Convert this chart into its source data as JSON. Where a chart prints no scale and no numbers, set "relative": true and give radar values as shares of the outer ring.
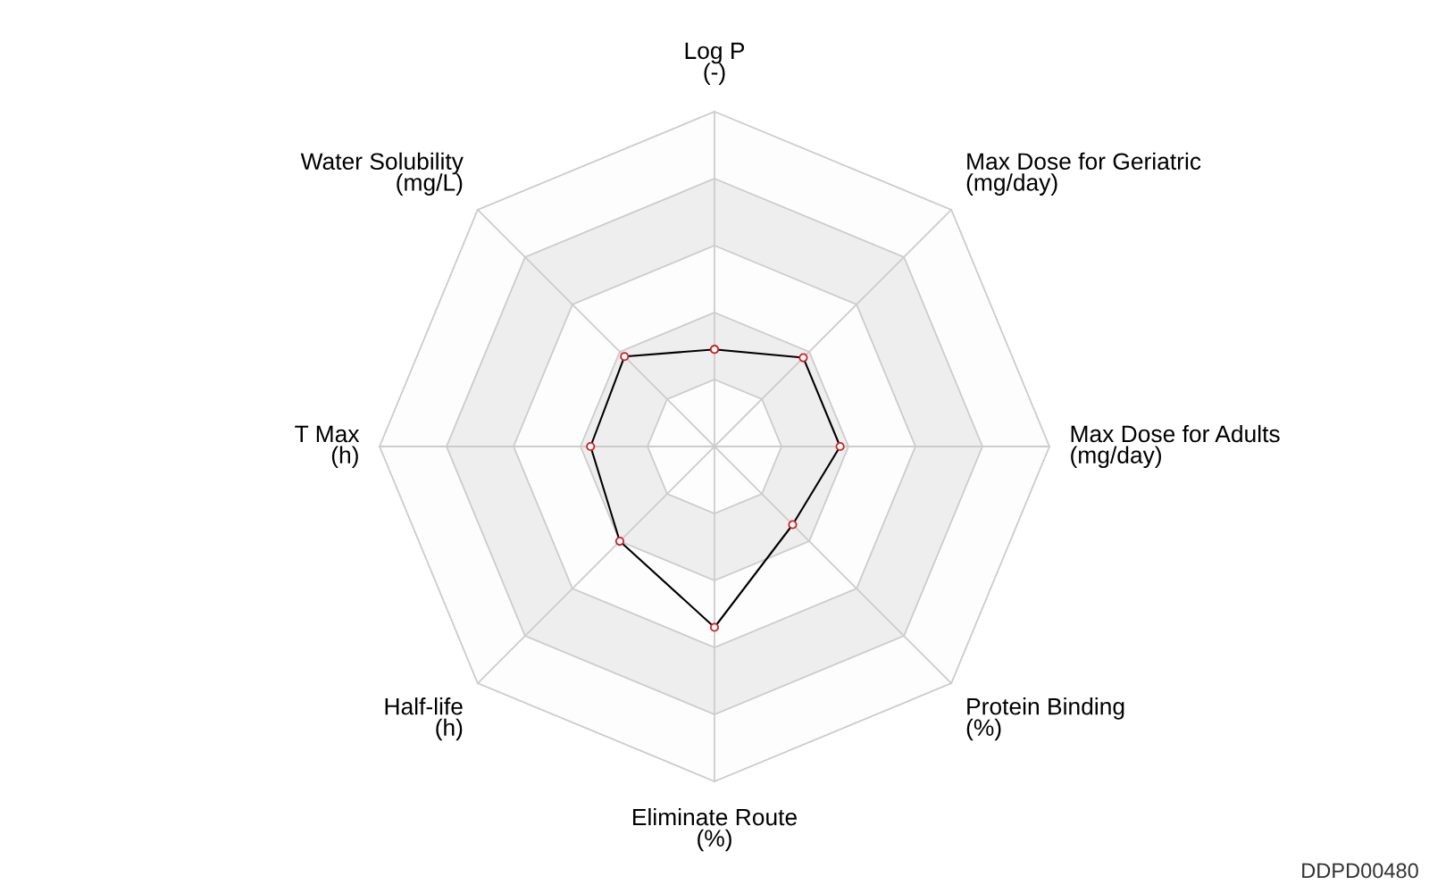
{
  "chart_data": {
    "type": "radar",
    "relative": true,
    "grid": true,
    "marker": "circle",
    "categories": [
      "Log P\n(-)",
      "Max Dose for Geriatric\n(mg/day)",
      "Max Dose for Adults\n(mg/day)",
      "Protein Binding\n(%)",
      "Eliminate Route\n(%)",
      "Half-life\n(h)",
      "T Max\n(h)",
      "Water Solubility\n(mg/L)"
    ],
    "series": [
      {
        "color": "#000000",
        "values": [
          0.29,
          0.375,
          0.375,
          0.33,
          0.54,
          0.4,
          0.37,
          0.38
        ]
      }
    ],
    "annotations": [
      "DDPD00480"
    ]
  }
}
